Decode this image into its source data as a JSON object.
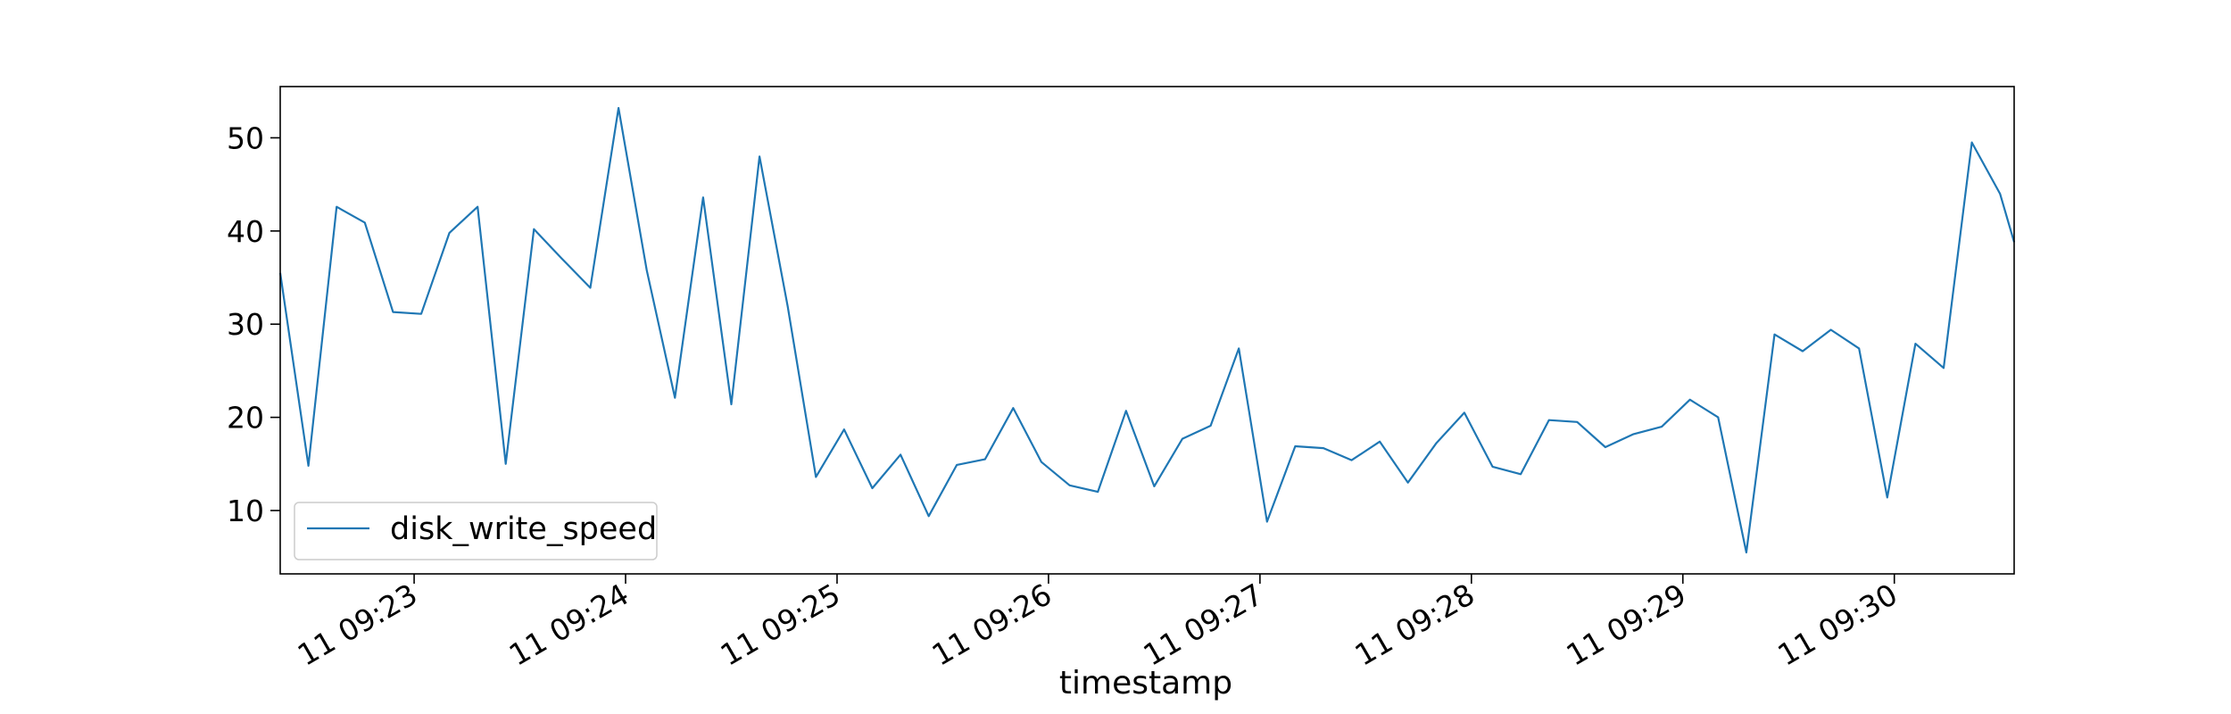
{
  "chart_data": {
    "type": "line",
    "title": "",
    "xlabel": "timestamp",
    "ylabel": "",
    "x_tick_labels": [
      "11 09:23",
      "11 09:24",
      "11 09:25",
      "11 09:26",
      "11 09:27",
      "11 09:28",
      "11 09:29",
      "11 09:30"
    ],
    "x_tick_times": [
      "09:23:00",
      "09:24:00",
      "09:25:00",
      "09:26:00",
      "09:27:00",
      "09:28:00",
      "09:29:00",
      "09:30:00"
    ],
    "xlim": [
      "09:22:22",
      "09:30:34"
    ],
    "y_ticks": [
      10,
      20,
      30,
      40,
      50
    ],
    "ylim": [
      3.2,
      55.5
    ],
    "grid": false,
    "legend_position": "lower-left",
    "series": [
      {
        "name": "disk_write_speed",
        "color": "#1f77b4",
        "x": [
          "09:22:22",
          "09:22:30",
          "09:22:38",
          "09:22:46",
          "09:22:54",
          "09:23:02",
          "09:23:10",
          "09:23:18",
          "09:23:26",
          "09:23:34",
          "09:23:42",
          "09:23:50",
          "09:23:58",
          "09:24:06",
          "09:24:14",
          "09:24:22",
          "09:24:30",
          "09:24:38",
          "09:24:46",
          "09:24:54",
          "09:25:02",
          "09:25:10",
          "09:25:18",
          "09:25:26",
          "09:25:34",
          "09:25:42",
          "09:25:50",
          "09:25:58",
          "09:26:06",
          "09:26:14",
          "09:26:22",
          "09:26:30",
          "09:26:38",
          "09:26:46",
          "09:26:54",
          "09:27:02",
          "09:27:10",
          "09:27:18",
          "09:27:26",
          "09:27:34",
          "09:27:42",
          "09:27:50",
          "09:27:58",
          "09:28:06",
          "09:28:14",
          "09:28:22",
          "09:28:30",
          "09:28:38",
          "09:28:46",
          "09:28:54",
          "09:29:02",
          "09:29:10",
          "09:29:18",
          "09:29:26",
          "09:29:34",
          "09:29:42",
          "09:29:50",
          "09:29:58",
          "09:30:06",
          "09:30:14",
          "09:30:22",
          "09:30:30",
          "09:30:34"
        ],
        "y": [
          35.5,
          14.8,
          42.6,
          40.9,
          31.3,
          31.1,
          39.8,
          42.6,
          15.0,
          40.2,
          37.0,
          33.9,
          53.2,
          35.8,
          22.1,
          43.6,
          21.4,
          48.0,
          31.9,
          13.6,
          18.7,
          12.4,
          16.0,
          9.4,
          14.9,
          15.5,
          21.0,
          15.2,
          12.7,
          12.0,
          20.7,
          12.6,
          17.7,
          19.1,
          27.4,
          8.8,
          16.9,
          16.7,
          15.4,
          17.4,
          13.0,
          17.2,
          20.5,
          14.7,
          13.9,
          19.7,
          19.5,
          16.8,
          18.2,
          19.0,
          21.9,
          20.0,
          5.5,
          28.9,
          27.1,
          29.4,
          27.4,
          11.4,
          27.9,
          25.3,
          49.5,
          44.0,
          38.8
        ]
      }
    ]
  }
}
